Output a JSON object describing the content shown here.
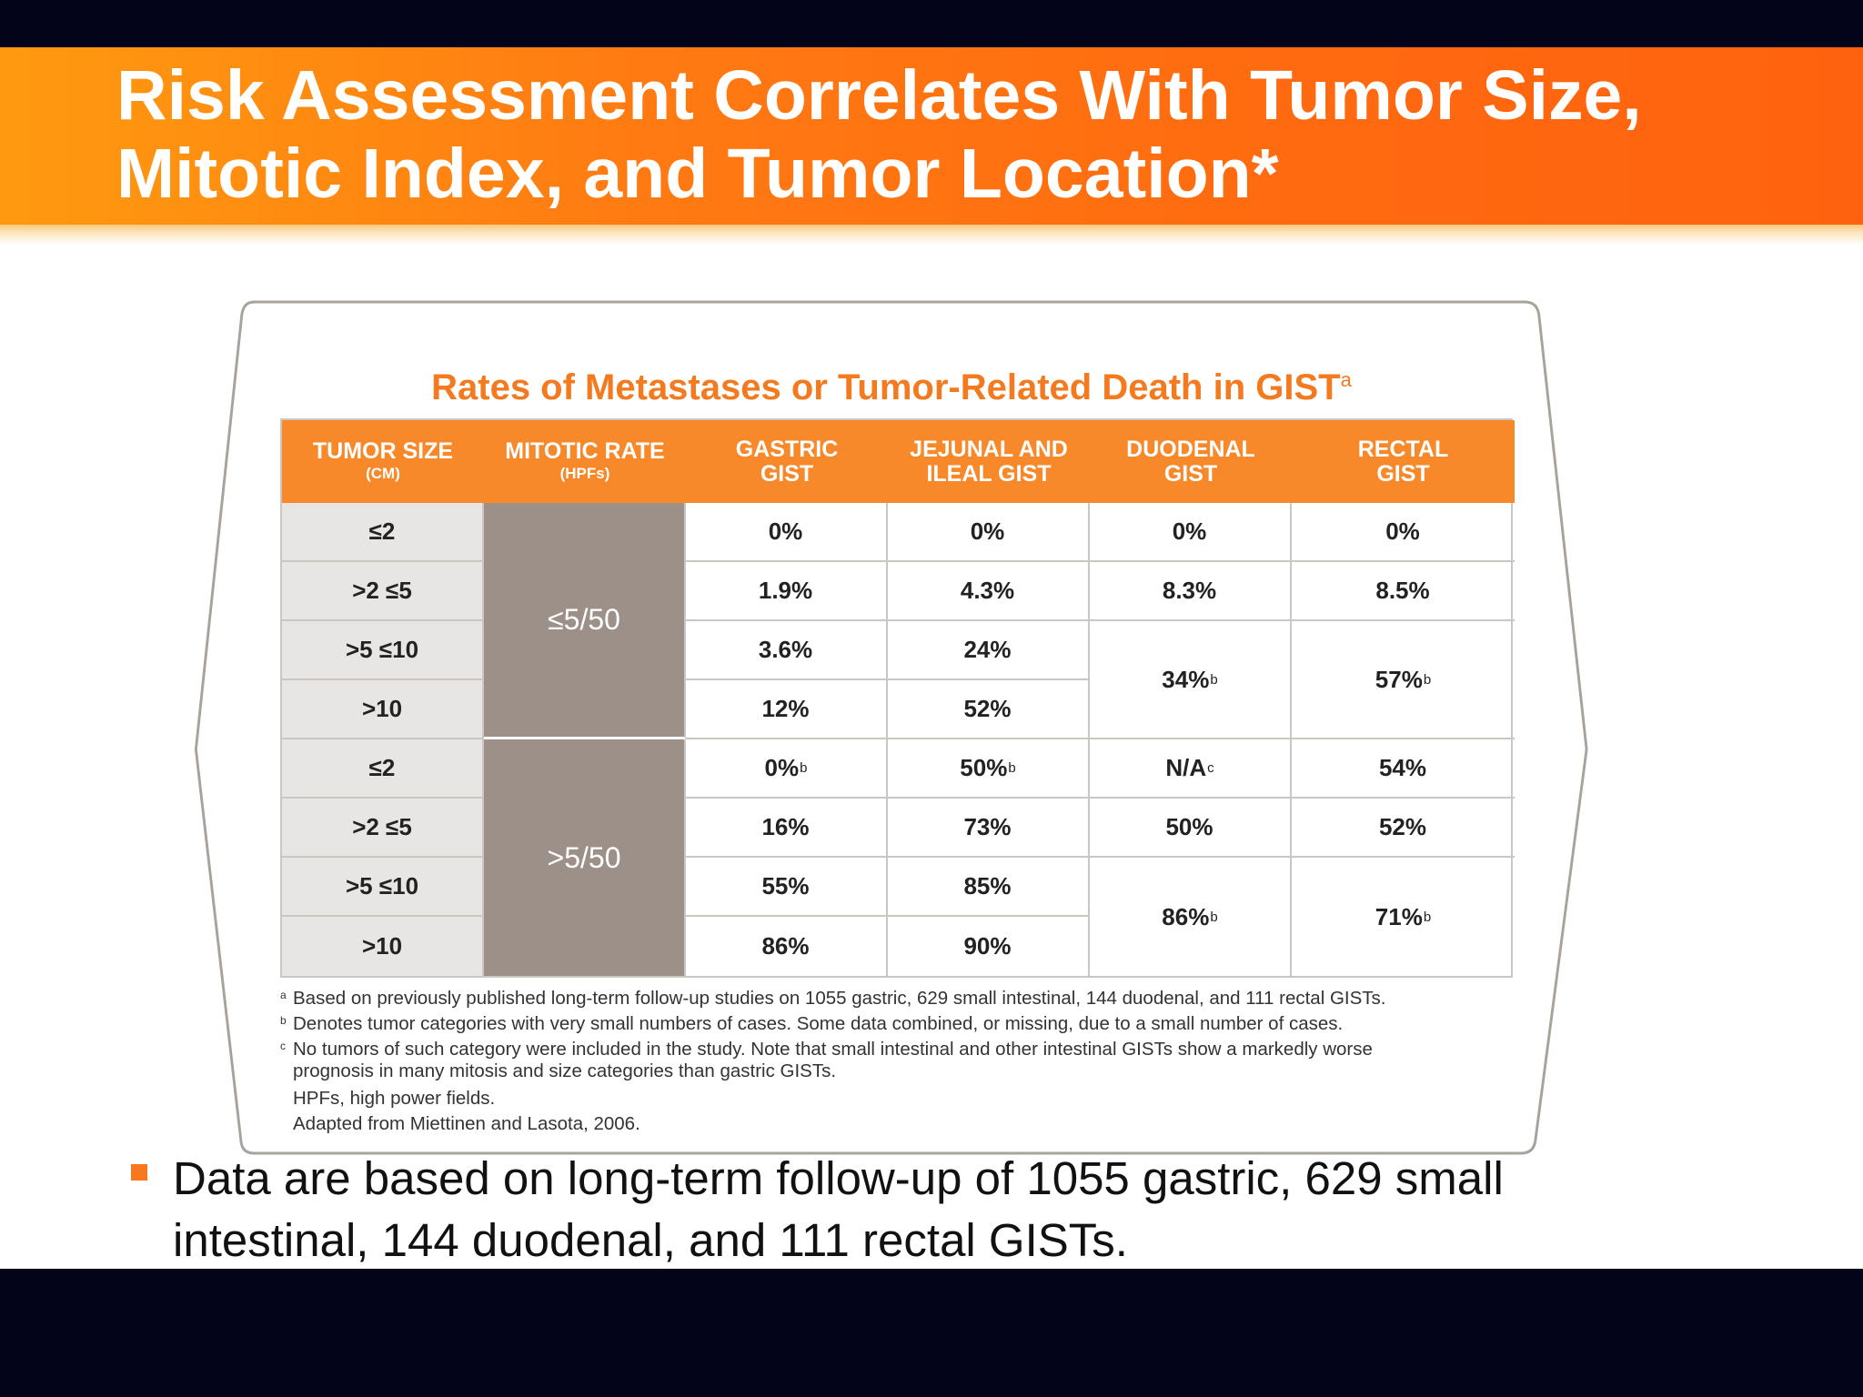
{
  "slide": {
    "title_lines": [
      "Risk Assessment Correlates With Tumor Size,",
      "Mitotic Index, and Tumor Location*"
    ]
  },
  "table": {
    "title": "Rates of Metastases or Tumor-Related Death in GIST",
    "title_mark": "a",
    "headers": [
      {
        "line1": "TUMOR SIZE",
        "line2": "(CM)"
      },
      {
        "line1": "MITOTIC RATE",
        "line2": "(HPFs)"
      },
      {
        "line1": "GASTRIC",
        "line2": "GIST"
      },
      {
        "line1": "JEJUNAL AND",
        "line2": "ILEAL GIST"
      },
      {
        "line1": "DUODENAL",
        "line2": "GIST"
      },
      {
        "line1": "RECTAL",
        "line2": "GIST"
      }
    ],
    "mitotic_groups": [
      "≤5/50",
      ">5/50"
    ],
    "sizes": [
      "≤2",
      ">2 ≤5",
      ">5 ≤10",
      ">10",
      "≤2",
      ">2 ≤5",
      ">5 ≤10",
      ">10"
    ],
    "gastric": [
      {
        "v": "0%",
        "m": ""
      },
      {
        "v": "1.9%",
        "m": ""
      },
      {
        "v": "3.6%",
        "m": ""
      },
      {
        "v": "12%",
        "m": ""
      },
      {
        "v": "0%",
        "m": "b"
      },
      {
        "v": "16%",
        "m": ""
      },
      {
        "v": "55%",
        "m": ""
      },
      {
        "v": "86%",
        "m": ""
      }
    ],
    "jejunal": [
      {
        "v": "0%",
        "m": ""
      },
      {
        "v": "4.3%",
        "m": ""
      },
      {
        "v": "24%",
        "m": ""
      },
      {
        "v": "52%",
        "m": ""
      },
      {
        "v": "50%",
        "m": "b"
      },
      {
        "v": "73%",
        "m": ""
      },
      {
        "v": "85%",
        "m": ""
      },
      {
        "v": "90%",
        "m": ""
      }
    ],
    "duodenal": [
      {
        "v": "0%",
        "m": ""
      },
      {
        "v": "8.3%",
        "m": ""
      },
      {
        "v": "34%",
        "m": "b"
      },
      {
        "v": "N/A",
        "m": "c"
      },
      {
        "v": "50%",
        "m": ""
      },
      {
        "v": "86%",
        "m": "b"
      }
    ],
    "rectal": [
      {
        "v": "0%",
        "m": ""
      },
      {
        "v": "8.5%",
        "m": ""
      },
      {
        "v": "57%",
        "m": "b"
      },
      {
        "v": "54%",
        "m": ""
      },
      {
        "v": "52%",
        "m": ""
      },
      {
        "v": "71%",
        "m": "b"
      }
    ]
  },
  "footnotes": {
    "a": {
      "mark": "a",
      "text": "Based on previously published long-term follow-up studies on 1055 gastric, 629 small intestinal, 144 duodenal, and 111 rectal GISTs."
    },
    "b": {
      "mark": "b",
      "text": "Denotes tumor categories with very small numbers of cases. Some data combined, or missing, due to a small number of cases."
    },
    "c": {
      "mark": "c",
      "line1": "No tumors of such category were included in the study. Note that small intestinal and other intestinal GISTs show a markedly worse",
      "line2": "prognosis in many mitosis and size categories than gastric GISTs."
    },
    "hpf": "HPFs, high power fields.",
    "source": "Adapted from Miettinen and Lasota, 2006."
  },
  "bullet": {
    "lines": [
      "Data are based on long-term follow-up of 1055 gastric, 629 small",
      "intestinal, 144 duodenal, and 111 rectal GISTs."
    ]
  },
  "colors": {
    "banner": "#ff7a12",
    "table_header": "#f7892a",
    "mitotic_cell": "#9c9088",
    "size_cell": "#e8e6e5",
    "accent_title": "#f47a20",
    "background_bars": "#03041a"
  }
}
